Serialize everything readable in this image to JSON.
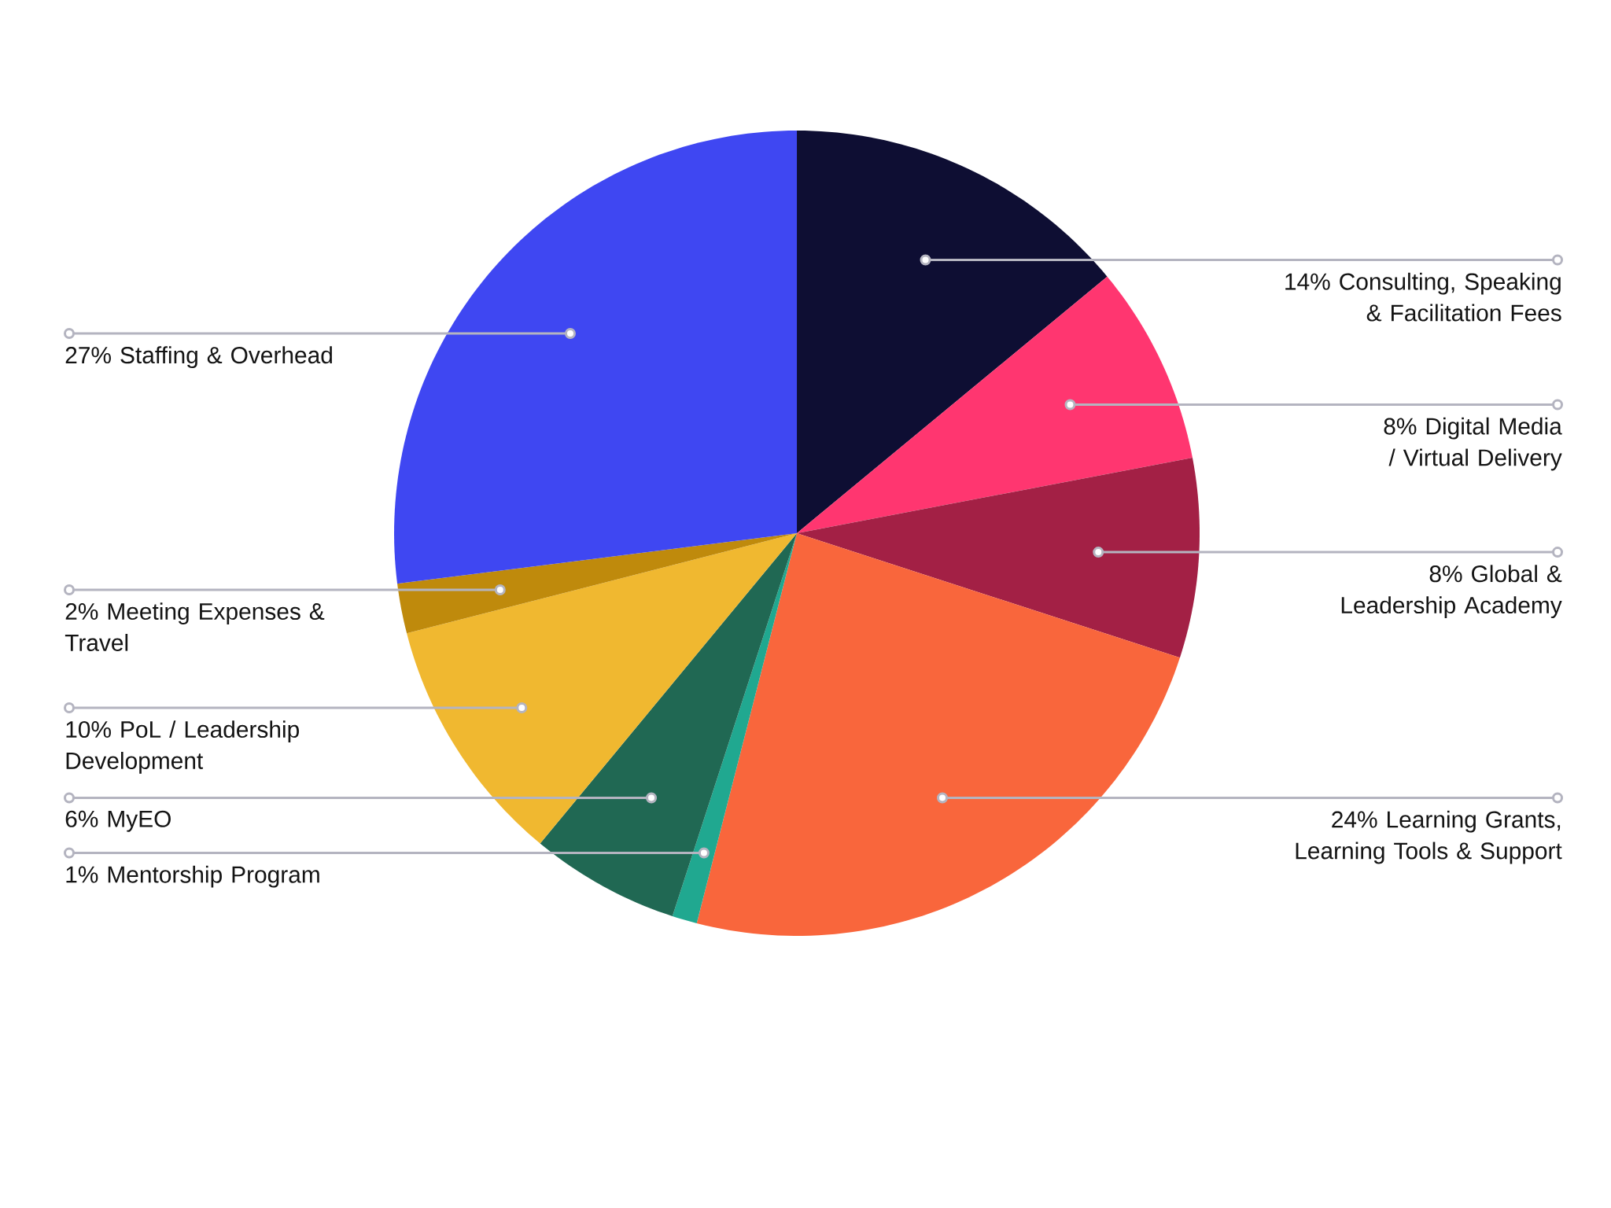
{
  "chart_data": {
    "type": "pie",
    "categories": [
      "Consulting, Speaking & Facilitation Fees",
      "Digital Media / Virtual Delivery",
      "Global & Leadership Academy",
      "Learning Grants, Learning Tools & Support",
      "Mentorship Program",
      "MyEO",
      "PoL / Leadership Development",
      "Meeting Expenses & Travel",
      "Staffing & Overhead"
    ],
    "values": [
      14,
      8,
      8,
      24,
      1,
      6,
      10,
      2,
      27
    ],
    "colors": [
      "#0e0e33",
      "#ff3670",
      "#a32045",
      "#f9663c",
      "#20a890",
      "#206853",
      "#f0b830",
      "#bf8a0c",
      "#3f47f2"
    ],
    "value_labels": [
      "14%",
      "8%",
      "8%",
      "24%",
      "1%",
      "6%",
      "10%",
      "2%",
      "27%"
    ]
  }
}
